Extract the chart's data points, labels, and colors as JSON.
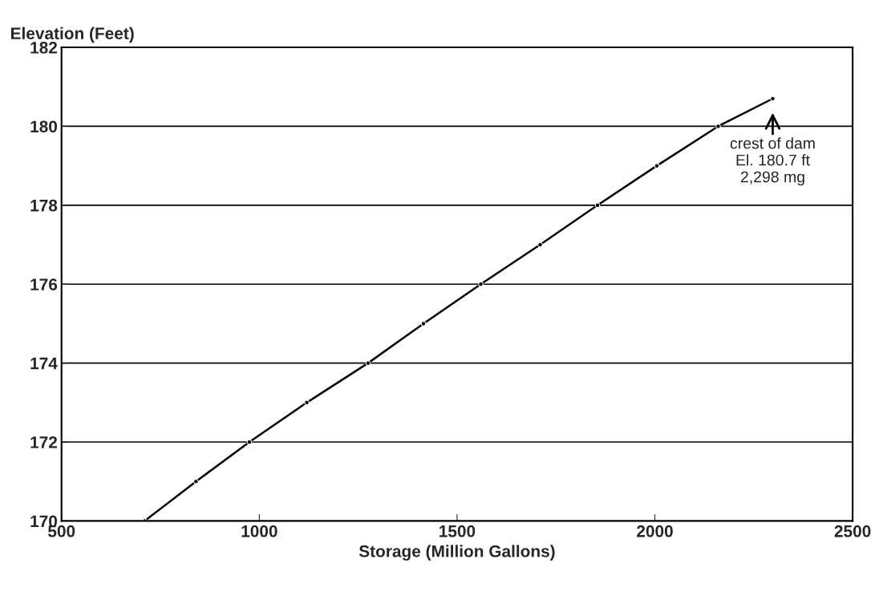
{
  "chart_data": {
    "type": "line",
    "xlabel": "Storage (Million Gallons)",
    "ylabel": "Elevation (Feet)",
    "x": [
      710,
      840,
      975,
      1120,
      1275,
      1415,
      1560,
      1710,
      1855,
      2005,
      2160,
      2298
    ],
    "series": [
      {
        "color": "#000000",
        "values": [
          170,
          171,
          172,
          173,
          174,
          175,
          176,
          177,
          178,
          179,
          180,
          180.7
        ]
      }
    ],
    "xlim": [
      500,
      2500
    ],
    "xticks": [
      500,
      1000,
      1500,
      2000,
      2500
    ],
    "ylim": [
      170,
      182
    ],
    "yticks": [
      170,
      172,
      174,
      176,
      178,
      180,
      182
    ],
    "grid": "y",
    "marker": "circle",
    "line_style": "solid",
    "annotations": [
      {
        "text": "crest of dam\nEl. 180.7 ft\n2,298 mg",
        "x": 2298,
        "y": 180.7
      }
    ]
  }
}
